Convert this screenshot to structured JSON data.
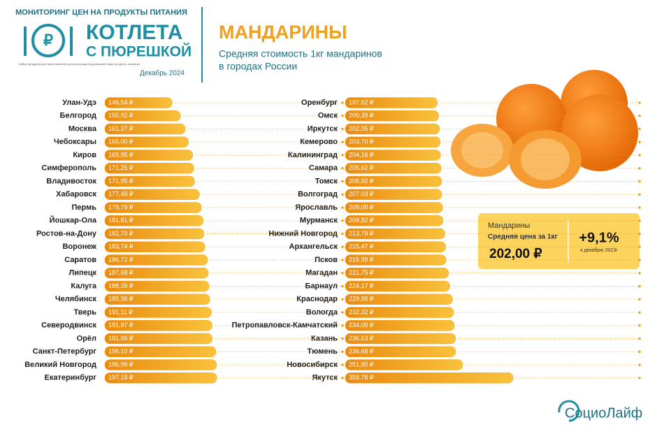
{
  "header": {
    "monitor": "МОНИТОРИНГ ЦЕН НА ПРОДУКТЫ ПИТАНИЯ",
    "logo_line1": "КОТЛЕТА",
    "logo_line2": "С ПЮРЕШКОЙ",
    "note": "*набор продуктов для приготовления суточного рациона домашней пищи на одного человека",
    "date": "Декабрь 2024",
    "title": "МАНДАРИНЫ",
    "subtitle_line1": "Средняя стоимость 1кг мандаринов",
    "subtitle_line2": "в городах России"
  },
  "chart_data": [
    {
      "type": "bar",
      "orientation": "horizontal",
      "color": "#f5a623",
      "xlim": [
        70,
        220
      ],
      "categories": [
        "Улан-Удэ",
        "Белгород",
        "Москва",
        "Чебоксары",
        "Киров",
        "Симферополь",
        "Владивосток",
        "Хабаровск",
        "Пермь",
        "Йошкар-Ола",
        "Ростов-на-Дону",
        "Воронеж",
        "Саратов",
        "Липецк",
        "Калуга",
        "Челябинск",
        "Тверь",
        "Северодвинск",
        "Орёл",
        "Санкт-Петербург",
        "Великий Новгород",
        "Екатеринбург"
      ],
      "values": [
        146.54,
        155.92,
        161.37,
        165,
        169.95,
        171.25,
        171.95,
        177.49,
        179.79,
        181.81,
        182.7,
        183.74,
        186.72,
        187.68,
        188.39,
        189.36,
        191.11,
        191.97,
        191.99,
        196.1,
        196.99,
        197.19
      ],
      "value_labels": [
        "146,54 ₽",
        "155,92 ₽",
        "161,37 ₽",
        "165,00 ₽",
        "169,95 ₽",
        "171,25 ₽",
        "171,95 ₽",
        "177,49 ₽",
        "179,79 ₽",
        "181,81 ₽",
        "182,70 ₽",
        "183,74 ₽",
        "186,72 ₽",
        "187,68 ₽",
        "188,39 ₽",
        "189,36 ₽",
        "191,11 ₽",
        "191,97 ₽",
        "191,99 ₽",
        "196,10 ₽",
        "196,99 ₽",
        "197,19 ₽"
      ]
    },
    {
      "type": "bar",
      "orientation": "horizontal",
      "color": "#f5a623",
      "xlim": [
        0,
        400
      ],
      "categories": [
        "Оренбург",
        "Омск",
        "Иркутск",
        "Кемерово",
        "Калининград",
        "Самара",
        "Томск",
        "Волгоград",
        "Ярославль",
        "Мурманск",
        "Нижний Новгород",
        "Архангельск",
        "Псков",
        "Магадан",
        "Барнаул",
        "Краснодар",
        "Вологда",
        "Петропавловск-Камчатский",
        "Казань",
        "Тюмень",
        "Новосибирск",
        "Якутск"
      ],
      "values": [
        197.62,
        200.39,
        202.05,
        203.7,
        204.16,
        205.62,
        206.92,
        207.03,
        209,
        209.82,
        213.79,
        215.47,
        215.99,
        221.75,
        224.17,
        229.99,
        232.32,
        234,
        236.63,
        236.68,
        251.9,
        359.78
      ],
      "value_labels": [
        "197,62 ₽",
        "200,39 ₽",
        "202,05 ₽",
        "203,70 ₽",
        "204,16 ₽",
        "205,62 ₽",
        "206,92 ₽",
        "207,03 ₽",
        "209,00 ₽",
        "209,82 ₽",
        "213,79 ₽",
        "215,47 ₽",
        "215,99 ₽",
        "221,75 ₽",
        "224,17 ₽",
        "229,99 ₽",
        "232,32 ₽",
        "234,00 ₽",
        "236,63 ₽",
        "236,68 ₽",
        "251,90 ₽",
        "359,78 ₽"
      ]
    }
  ],
  "callout": {
    "product": "Мандарины",
    "label": "Средняя цена за 1кг",
    "price": "202,00 ₽",
    "change": "+9,1%",
    "change_note": "к декабрю 2023г"
  },
  "footer": {
    "brand": "СоциоЛайф"
  }
}
